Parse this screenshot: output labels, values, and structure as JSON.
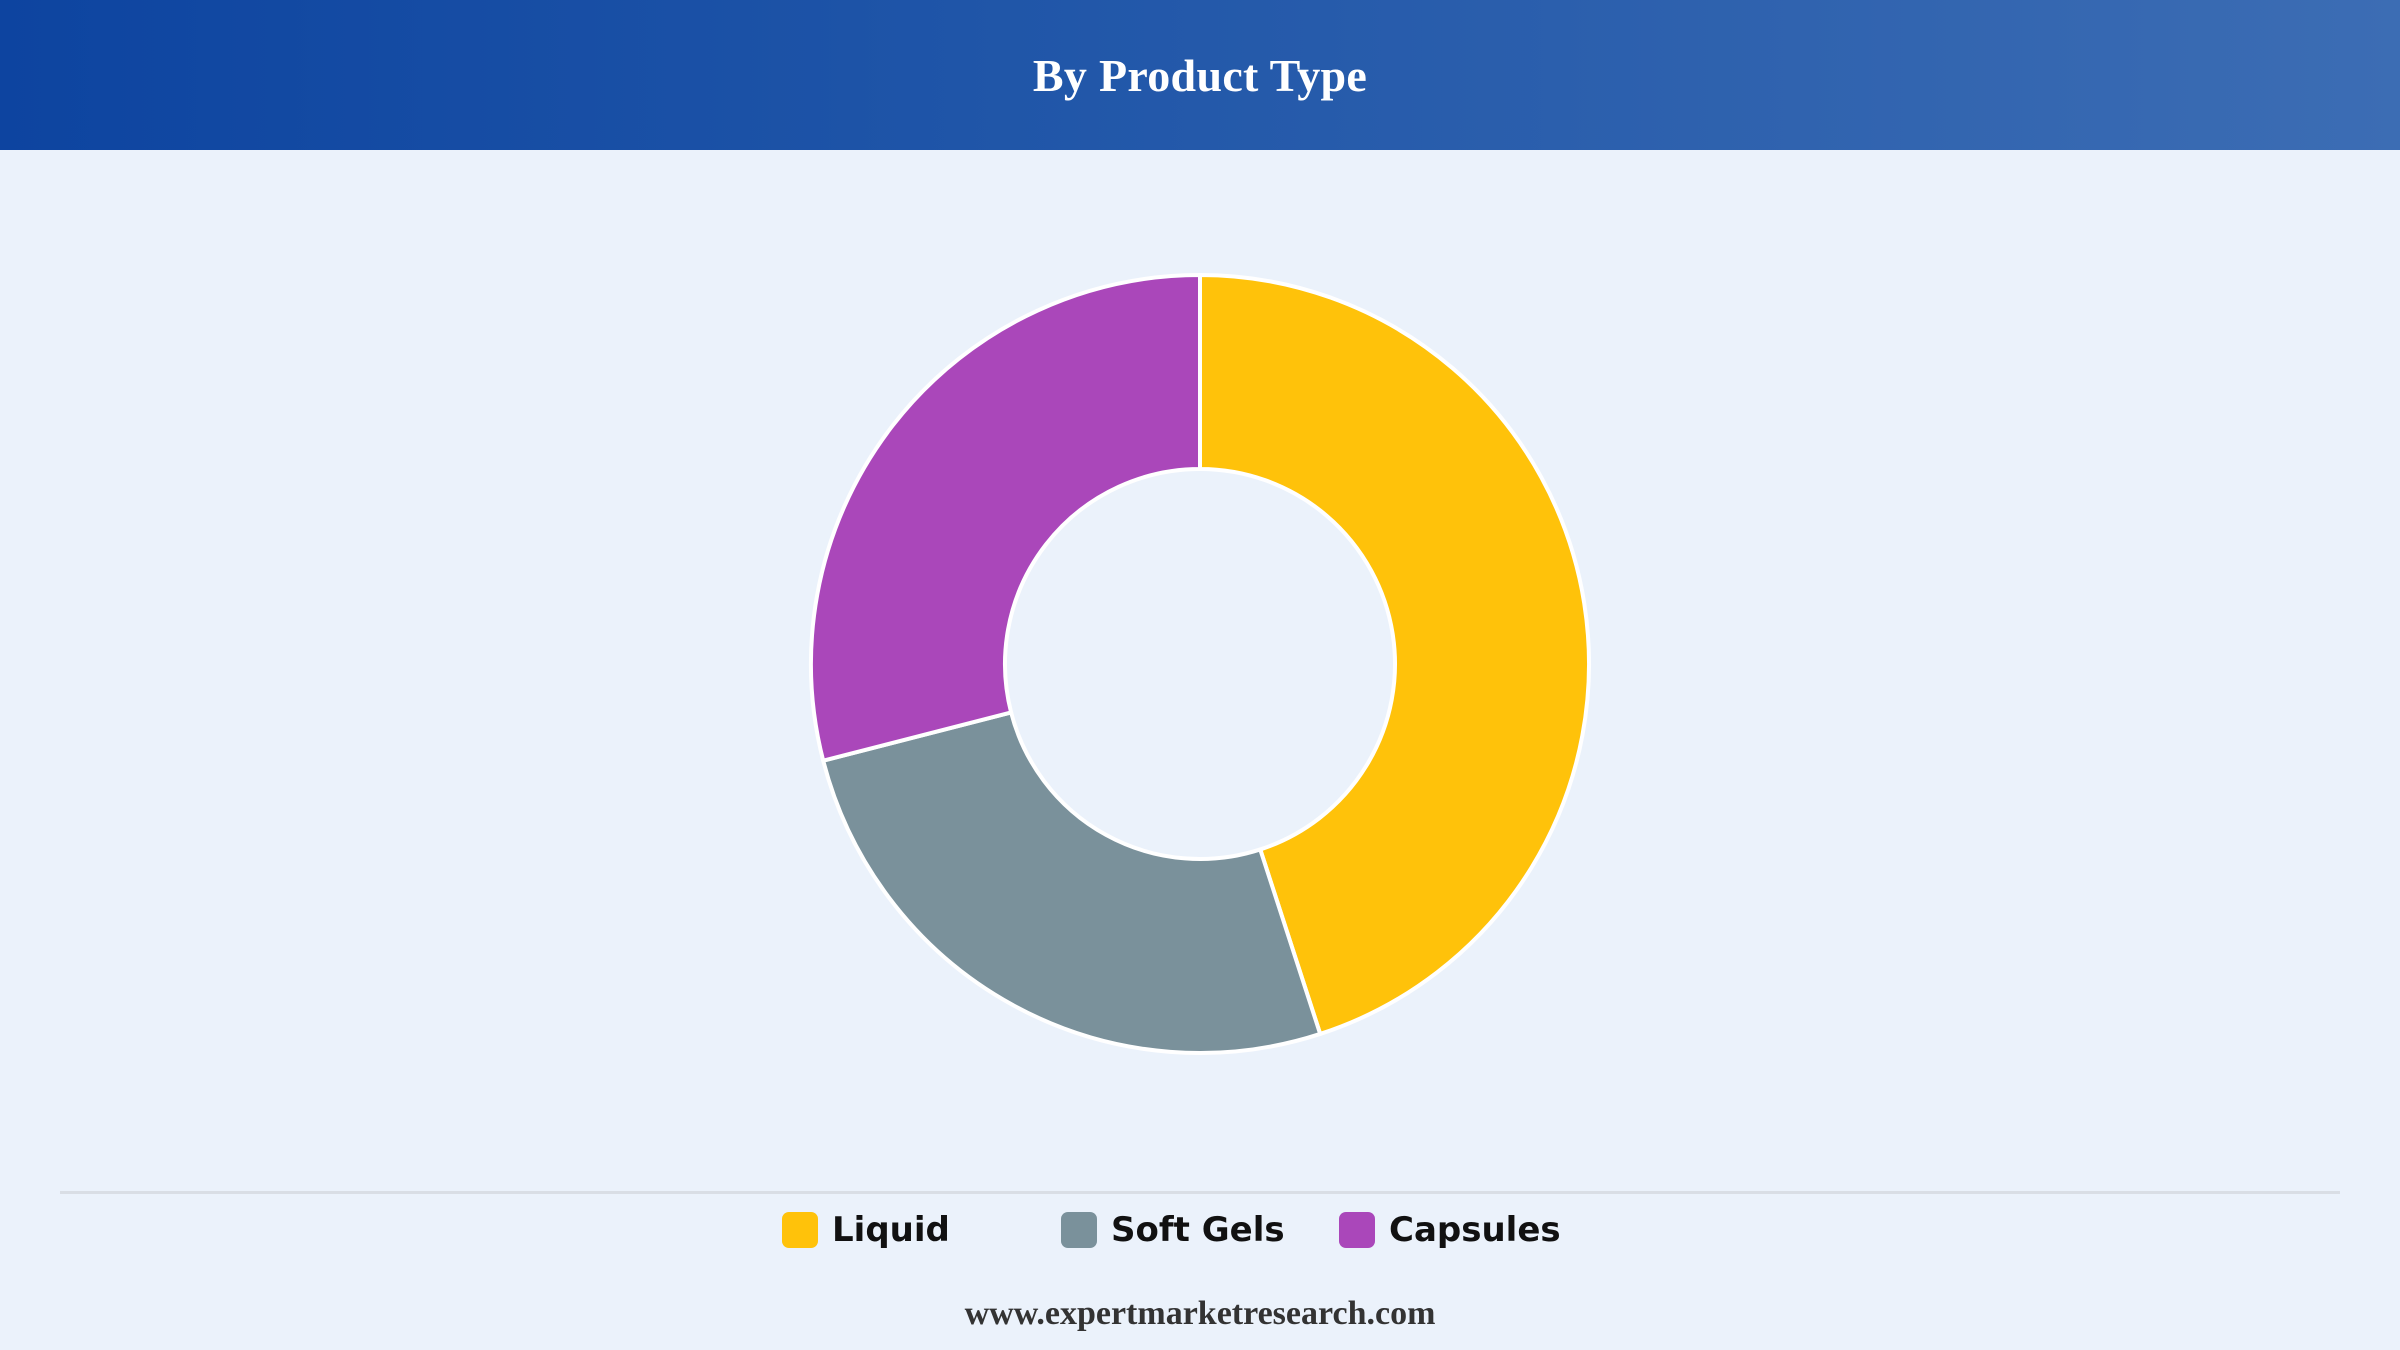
{
  "header": {
    "title": "By Product Type"
  },
  "chart_data": {
    "type": "pie",
    "variant": "donut",
    "title": "By Product Type",
    "categories": [
      "Liquid",
      "Soft Gels",
      "Capsules"
    ],
    "values": [
      45,
      26,
      29
    ],
    "colors": [
      "#ffc20a",
      "#7a919b",
      "#aa47ba"
    ],
    "legend_position": "bottom",
    "start_angle": "top, clockwise"
  },
  "legend": {
    "items": [
      {
        "label": "Liquid",
        "color": "#ffc20a"
      },
      {
        "label": "Soft Gels",
        "color": "#7a919b"
      },
      {
        "label": "Capsules",
        "color": "#aa47ba"
      }
    ]
  },
  "footer": {
    "text": "www.expertmarketresearch.com"
  }
}
